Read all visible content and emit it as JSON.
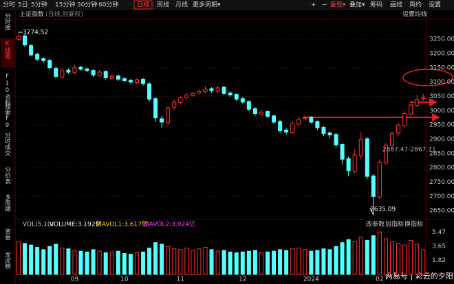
{
  "toolbar": {
    "tabs": [
      "分时",
      "5日",
      "5分钟",
      "15分钟",
      "30分钟",
      "60分钟",
      "日线",
      "周线",
      "月线",
      "更多周期▾"
    ],
    "active_tab": 6,
    "tools": [
      "+",
      "−",
      "复权▾",
      "叠加▾",
      "筹码",
      "画线",
      "简约",
      "设置"
    ]
  },
  "sidebar": {
    "items": [
      "分时图",
      "K线图",
      "F10资料",
      "搜索F9",
      "分时成交",
      "分价表",
      "多周期",
      "资金",
      "龙虎榜"
    ],
    "active_item": 1
  },
  "watermark": "网易号 | 彩云的夕阳",
  "chart_data": [
    {
      "type": "candlestick",
      "title": "上证指数",
      "subtitle": "(日线,前复权)",
      "settings_label": "设置均线",
      "annotation": "2867.47-2867.71",
      "up_color": "#ff3232",
      "down_color": "#54ffff",
      "grid": true,
      "categories": [
        null,
        null,
        null,
        null,
        null,
        null,
        null,
        null,
        null,
        "09",
        null,
        null,
        null,
        null,
        null,
        null,
        null,
        "10",
        null,
        null,
        null,
        null,
        null,
        null,
        null,
        null,
        "11",
        null,
        null,
        null,
        null,
        null,
        null,
        null,
        null,
        null,
        "12",
        null,
        null,
        null,
        null,
        null,
        null,
        null,
        null,
        null,
        null,
        "2024",
        null,
        null,
        null,
        null,
        null,
        null,
        null,
        null,
        null,
        null,
        "02",
        null,
        null,
        null,
        null,
        null,
        null,
        null
      ],
      "open": [
        3250,
        3262,
        3228,
        3197,
        3182,
        3176,
        3148,
        3118,
        3142,
        3133,
        3152,
        3146,
        3141,
        3123,
        3137,
        3113,
        3122,
        3112,
        3106,
        3098,
        3110,
        3094,
        3042,
        2972,
        2958,
        3012,
        3028,
        3046,
        3053,
        3062,
        3066,
        3077,
        3068,
        3082,
        3062,
        3057,
        3042,
        3032,
        3007,
        2988,
        2997,
        2982,
        2962,
        2932,
        2923,
        2953,
        2972,
        2977,
        2962,
        2942,
        2922,
        2917,
        2882,
        2832,
        2788,
        2842,
        2902,
        2772,
        2698,
        2818,
        2878,
        2922,
        2948,
        2988,
        3018,
        3042
      ],
      "high": [
        3274.52,
        3268,
        3233,
        3203,
        3187,
        3182,
        3156,
        3150,
        3148,
        3160,
        3157,
        3151,
        3145,
        3143,
        3141,
        3127,
        3126,
        3118,
        3111,
        3114,
        3115,
        3099,
        3048,
        2982,
        3016,
        3038,
        3051,
        3062,
        3065,
        3074,
        3085,
        3082,
        3088,
        3086,
        3067,
        3061,
        3047,
        3036,
        3012,
        3003,
        3001,
        2986,
        2967,
        2938,
        2962,
        2980,
        2983,
        2981,
        2966,
        2947,
        2928,
        2921,
        2887,
        2840,
        2865,
        2925,
        2907,
        2778,
        2830,
        2888,
        2928,
        2957,
        2998,
        3030,
        3055,
        3059
      ],
      "low": [
        3245,
        3224,
        3190,
        3174,
        3168,
        3144,
        3112,
        3112,
        3128,
        3128,
        3140,
        3135,
        3118,
        3118,
        3108,
        3108,
        3104,
        3100,
        3094,
        3092,
        3088,
        3030,
        2960,
        2940,
        2950,
        3005,
        3022,
        3040,
        3048,
        3055,
        3060,
        3062,
        3062,
        3054,
        3048,
        3034,
        3024,
        2998,
        2982,
        2984,
        2974,
        2954,
        2922,
        2916,
        2918,
        2948,
        2968,
        2954,
        2932,
        2912,
        2904,
        2870,
        2812,
        2770,
        2780,
        2830,
        2760,
        2635.09,
        2690,
        2810,
        2870,
        2912,
        2942,
        2982,
        3012,
        3034
      ],
      "close": [
        3260,
        3230,
        3195,
        3180,
        3175,
        3150,
        3120,
        3140,
        3135,
        3150,
        3145,
        3140,
        3125,
        3135,
        3115,
        3120,
        3110,
        3105,
        3100,
        3108,
        3095,
        3040,
        2975,
        2960,
        3010,
        3030,
        3045,
        3055,
        3060,
        3068,
        3075,
        3070,
        3080,
        3060,
        3055,
        3040,
        3030,
        3005,
        2990,
        2995,
        2980,
        2960,
        2930,
        2925,
        2955,
        2970,
        2975,
        2960,
        2940,
        2920,
        2915,
        2880,
        2830,
        2790,
        2845,
        2900,
        2770,
        2700,
        2820,
        2880,
        2920,
        2950,
        2990,
        3020,
        3040,
        3045
      ],
      "ylim": [
        2624,
        3320
      ],
      "yticks": [
        {
          "value": 3250,
          "label": "3250.00"
        },
        {
          "value": 3200,
          "label": "3200.00"
        },
        {
          "value": 3150,
          "label": "3150.00"
        },
        {
          "value": 3100,
          "label": "3100.00"
        },
        {
          "value": 3050,
          "label": "3050.00"
        },
        {
          "value": 3000,
          "label": "3000.00"
        },
        {
          "value": 2950,
          "label": "2950.00"
        },
        {
          "value": 2900,
          "label": "2900.00"
        },
        {
          "value": 2850,
          "label": "2850.00"
        },
        {
          "value": 2800,
          "label": "2800.00"
        },
        {
          "value": 2750,
          "label": "2750.00"
        },
        {
          "value": 2700,
          "label": "2700.00"
        },
        {
          "value": 2650,
          "label": "2650.00"
        }
      ]
    },
    {
      "type": "bar",
      "title": "VOL(5,10)",
      "readouts": [
        "VOLUME:3.192亿",
        "MAVOL1:3.617亿",
        "MAVOL2:3.924亿"
      ],
      "buttons": [
        "改参数",
        "加指标",
        "换指标"
      ],
      "values": [
        4.2,
        4.0,
        3.8,
        3.5,
        3.2,
        3.6,
        3.9,
        3.4,
        3.3,
        3.1,
        3.0,
        2.9,
        3.2,
        3.0,
        2.8,
        2.9,
        3.0,
        2.7,
        2.6,
        2.8,
        2.9,
        3.4,
        4.1,
        3.9,
        3.6,
        3.3,
        3.2,
        3.4,
        3.1,
        3.3,
        3.5,
        3.2,
        3.0,
        3.1,
        2.9,
        2.8,
        2.9,
        3.0,
        3.1,
        2.8,
        2.9,
        3.0,
        3.2,
        3.1,
        3.3,
        3.4,
        3.2,
        3.0,
        3.1,
        3.3,
        3.2,
        3.6,
        4.1,
        4.5,
        4.3,
        4.8,
        4.4,
        5.0,
        5.47,
        4.6,
        4.2,
        4.0,
        3.8,
        4.4,
        3.9,
        3.192
      ],
      "ylim": [
        0,
        7
      ],
      "yticks": [
        5.47,
        3.65,
        1.82
      ]
    }
  ]
}
